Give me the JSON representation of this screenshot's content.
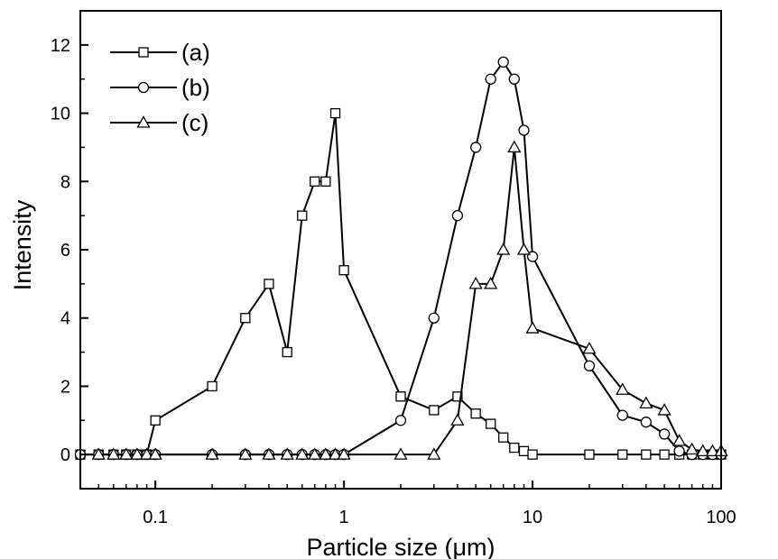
{
  "chart_data": {
    "type": "line",
    "xscale": "log",
    "xlim": [
      0.04,
      100
    ],
    "ylim": [
      -1,
      13
    ],
    "xlabel": "Particle size (μm)",
    "ylabel": "Intensity",
    "xticks": [
      {
        "value": 0.1,
        "label": "0.1"
      },
      {
        "value": 1,
        "label": "1"
      },
      {
        "value": 10,
        "label": "10"
      },
      {
        "value": 100,
        "label": "100"
      }
    ],
    "yticks": [
      {
        "value": 0,
        "label": "0"
      },
      {
        "value": 2,
        "label": "2"
      },
      {
        "value": 4,
        "label": "4"
      },
      {
        "value": 6,
        "label": "6"
      },
      {
        "value": 8,
        "label": "8"
      },
      {
        "value": 10,
        "label": "10"
      },
      {
        "value": 12,
        "label": "12"
      }
    ],
    "legend": "top-left",
    "grid": false,
    "series": [
      {
        "name": "(a)",
        "marker": "square",
        "x": [
          0.04,
          0.05,
          0.06,
          0.07,
          0.08,
          0.09,
          0.1,
          0.2,
          0.3,
          0.4,
          0.5,
          0.6,
          0.7,
          0.8,
          0.9,
          1,
          2,
          3,
          4,
          5,
          6,
          7,
          8,
          9,
          10,
          20,
          30,
          40,
          50,
          60,
          70,
          80,
          90,
          100
        ],
        "y": [
          0,
          0,
          0,
          0,
          0,
          0,
          1,
          2,
          4,
          5,
          3,
          7,
          8,
          8,
          10,
          5.4,
          1.7,
          1.3,
          1.7,
          1.2,
          0.9,
          0.5,
          0.2,
          0.1,
          0,
          0,
          0,
          0,
          0,
          0,
          0,
          0,
          0,
          0
        ]
      },
      {
        "name": "(b)",
        "marker": "circle",
        "x": [
          0.04,
          0.05,
          0.06,
          0.07,
          0.08,
          0.09,
          0.1,
          0.2,
          0.3,
          0.4,
          0.5,
          0.6,
          0.7,
          0.8,
          0.9,
          1,
          2,
          3,
          4,
          5,
          6,
          7,
          8,
          9,
          10,
          20,
          30,
          40,
          50,
          60,
          70,
          80,
          90,
          100
        ],
        "y": [
          0,
          0,
          0,
          0,
          0,
          0,
          0,
          0,
          0,
          0,
          0,
          0,
          0,
          0,
          0,
          0,
          1,
          4,
          7,
          9,
          11,
          11.5,
          11,
          9.5,
          5.8,
          2.6,
          1.15,
          0.95,
          0.6,
          0.1,
          0,
          0,
          0,
          0
        ]
      },
      {
        "name": "(c)",
        "marker": "triangle",
        "x": [
          0.05,
          0.06,
          0.07,
          0.08,
          0.09,
          0.1,
          0.2,
          0.3,
          0.4,
          0.5,
          0.6,
          0.7,
          0.8,
          0.9,
          1,
          2,
          3,
          4,
          5,
          6,
          7,
          8,
          9,
          10,
          20,
          30,
          40,
          50,
          60,
          70,
          80,
          90,
          100
        ],
        "y": [
          0,
          0,
          0,
          0,
          0,
          0,
          0,
          0,
          0,
          0,
          0,
          0,
          0,
          0,
          0,
          0,
          0,
          1,
          5,
          5,
          6,
          9,
          6,
          3.7,
          3.1,
          1.9,
          1.5,
          1.3,
          0.4,
          0.15,
          0.1,
          0.1,
          0.1
        ]
      }
    ]
  }
}
